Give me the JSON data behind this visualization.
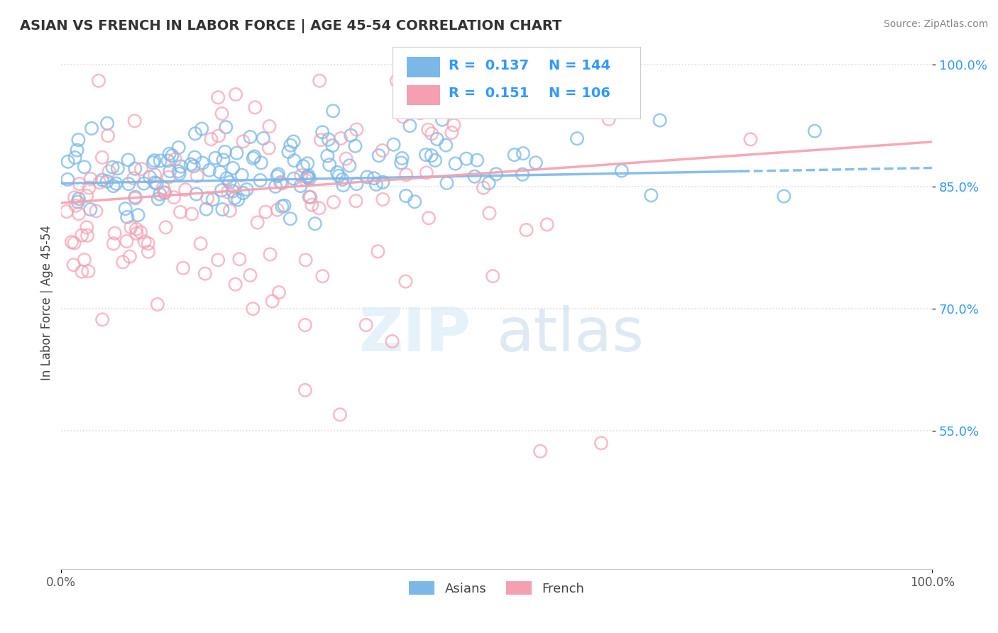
{
  "title": "ASIAN VS FRENCH IN LABOR FORCE | AGE 45-54 CORRELATION CHART",
  "source": "Source: ZipAtlas.com",
  "ylabel": "In Labor Force | Age 45-54",
  "xlim": [
    0.0,
    1.0
  ],
  "ylim": [
    0.38,
    1.035
  ],
  "yticks": [
    0.55,
    0.7,
    0.85,
    1.0
  ],
  "ytick_labels": [
    "55.0%",
    "70.0%",
    "85.0%",
    "100.0%"
  ],
  "xticks": [
    0.0,
    1.0
  ],
  "xtick_labels": [
    "0.0%",
    "100.0%"
  ],
  "asian_color": "#7bb8e8",
  "french_color": "#f4a0b0",
  "asian_R": 0.137,
  "asian_N": 144,
  "french_R": 0.151,
  "french_N": 106,
  "watermark_zip": "ZIP",
  "watermark_atlas": "atlas",
  "background_color": "#ffffff",
  "grid_color": "#dddddd",
  "title_color": "#333333",
  "axis_label_color": "#3399ff",
  "legend_R_color": "#3399ff"
}
